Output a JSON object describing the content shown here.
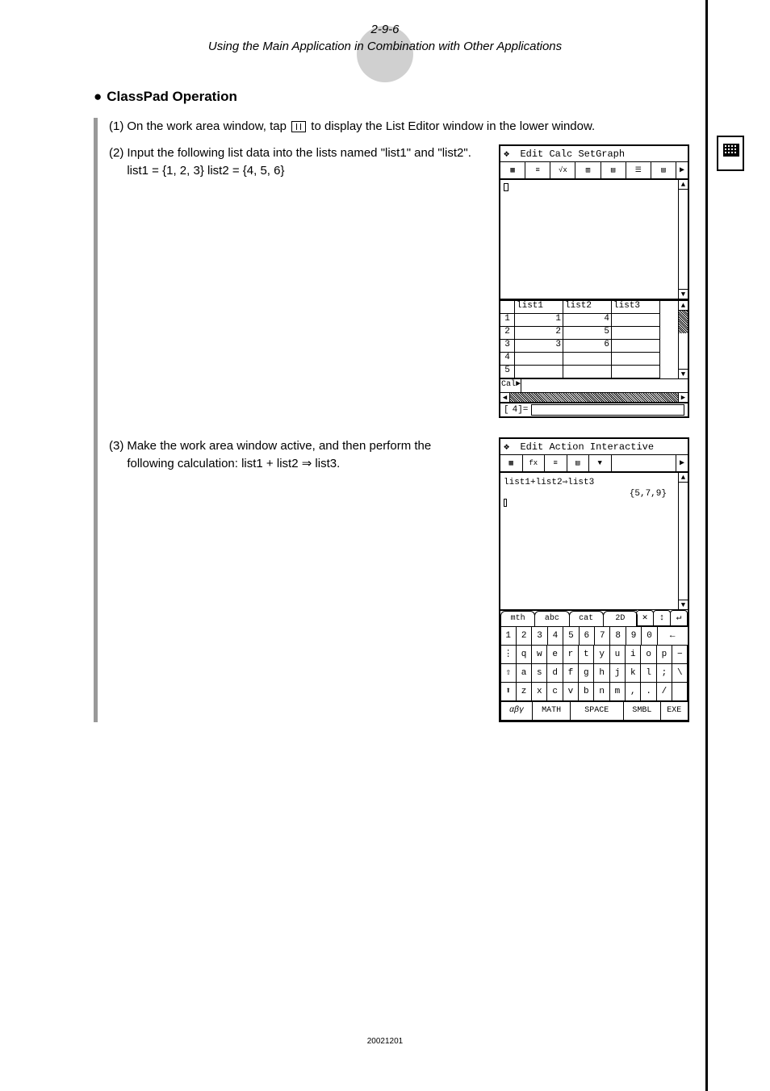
{
  "header": {
    "section_number": "2-9-6",
    "section_title": "Using the Main Application in Combination with Other Applications"
  },
  "heading": "ClassPad Operation",
  "steps": {
    "s1": {
      "num": "(1)",
      "text_before": "On the work area window, tap ",
      "text_after": " to display the List Editor window in the lower window."
    },
    "s2": {
      "num": "(2)",
      "line1": "Input the following list data into the lists named \"list1\" and \"list2\". list1 = {1, 2, 3} list2 = {4, 5, 6}"
    },
    "s3": {
      "num": "(3)",
      "line1": "Make the work area window active, and then perform the following calculation: list1 + list2 ⇒ list3."
    }
  },
  "calc1": {
    "menu": [
      "Edit",
      "Calc",
      "SetGraph"
    ],
    "list_editor": {
      "headers": [
        "list1",
        "list2",
        "list3"
      ],
      "rows": [
        {
          "idx": "1",
          "c1": "1",
          "c2": "4",
          "c3": ""
        },
        {
          "idx": "2",
          "c1": "2",
          "c2": "5",
          "c3": ""
        },
        {
          "idx": "3",
          "c1": "3",
          "c2": "6",
          "c3": ""
        },
        {
          "idx": "4",
          "c1": "",
          "c2": "",
          "c3": ""
        },
        {
          "idx": "5",
          "c1": "",
          "c2": "",
          "c3": ""
        }
      ],
      "cal_label": "Cal►"
    },
    "status": {
      "left": "[",
      "right": "4]="
    }
  },
  "calc2": {
    "menu": [
      "Edit",
      "Action",
      "Interactive"
    ],
    "expr": "list1+list2⇒list3",
    "result": "{5,7,9}",
    "tabs": [
      "mth",
      "abc",
      "cat",
      "2D"
    ],
    "tab_icons": [
      "✕",
      "↕",
      "↵"
    ],
    "kbd": {
      "r1": [
        "1",
        "2",
        "3",
        "4",
        "5",
        "6",
        "7",
        "8",
        "9",
        "0"
      ],
      "r1_bs": "←",
      "r2_lead": "⋮",
      "r2": [
        "q",
        "w",
        "e",
        "r",
        "t",
        "y",
        "u",
        "i",
        "o",
        "p"
      ],
      "r2_tail": "−",
      "r3_lead": "⇧",
      "r3": [
        "a",
        "s",
        "d",
        "f",
        "g",
        "h",
        "j",
        "k",
        "l",
        ";"
      ],
      "r3_tail": "\\",
      "r4_lead": "⬆",
      "r4": [
        "z",
        "x",
        "c",
        "v",
        "b",
        "n",
        "m",
        ",",
        "."
      ],
      "r4_tail": "/",
      "bottom": {
        "aby": "αβγ",
        "math": "MATH",
        "space": "SPACE",
        "smbl": "SMBL",
        "exe": "EXE"
      }
    }
  },
  "footer_date": "20021201",
  "colors": {
    "circle_bg": "#d0d0d0",
    "border_gray": "#999999",
    "black": "#000000",
    "white": "#ffffff"
  }
}
